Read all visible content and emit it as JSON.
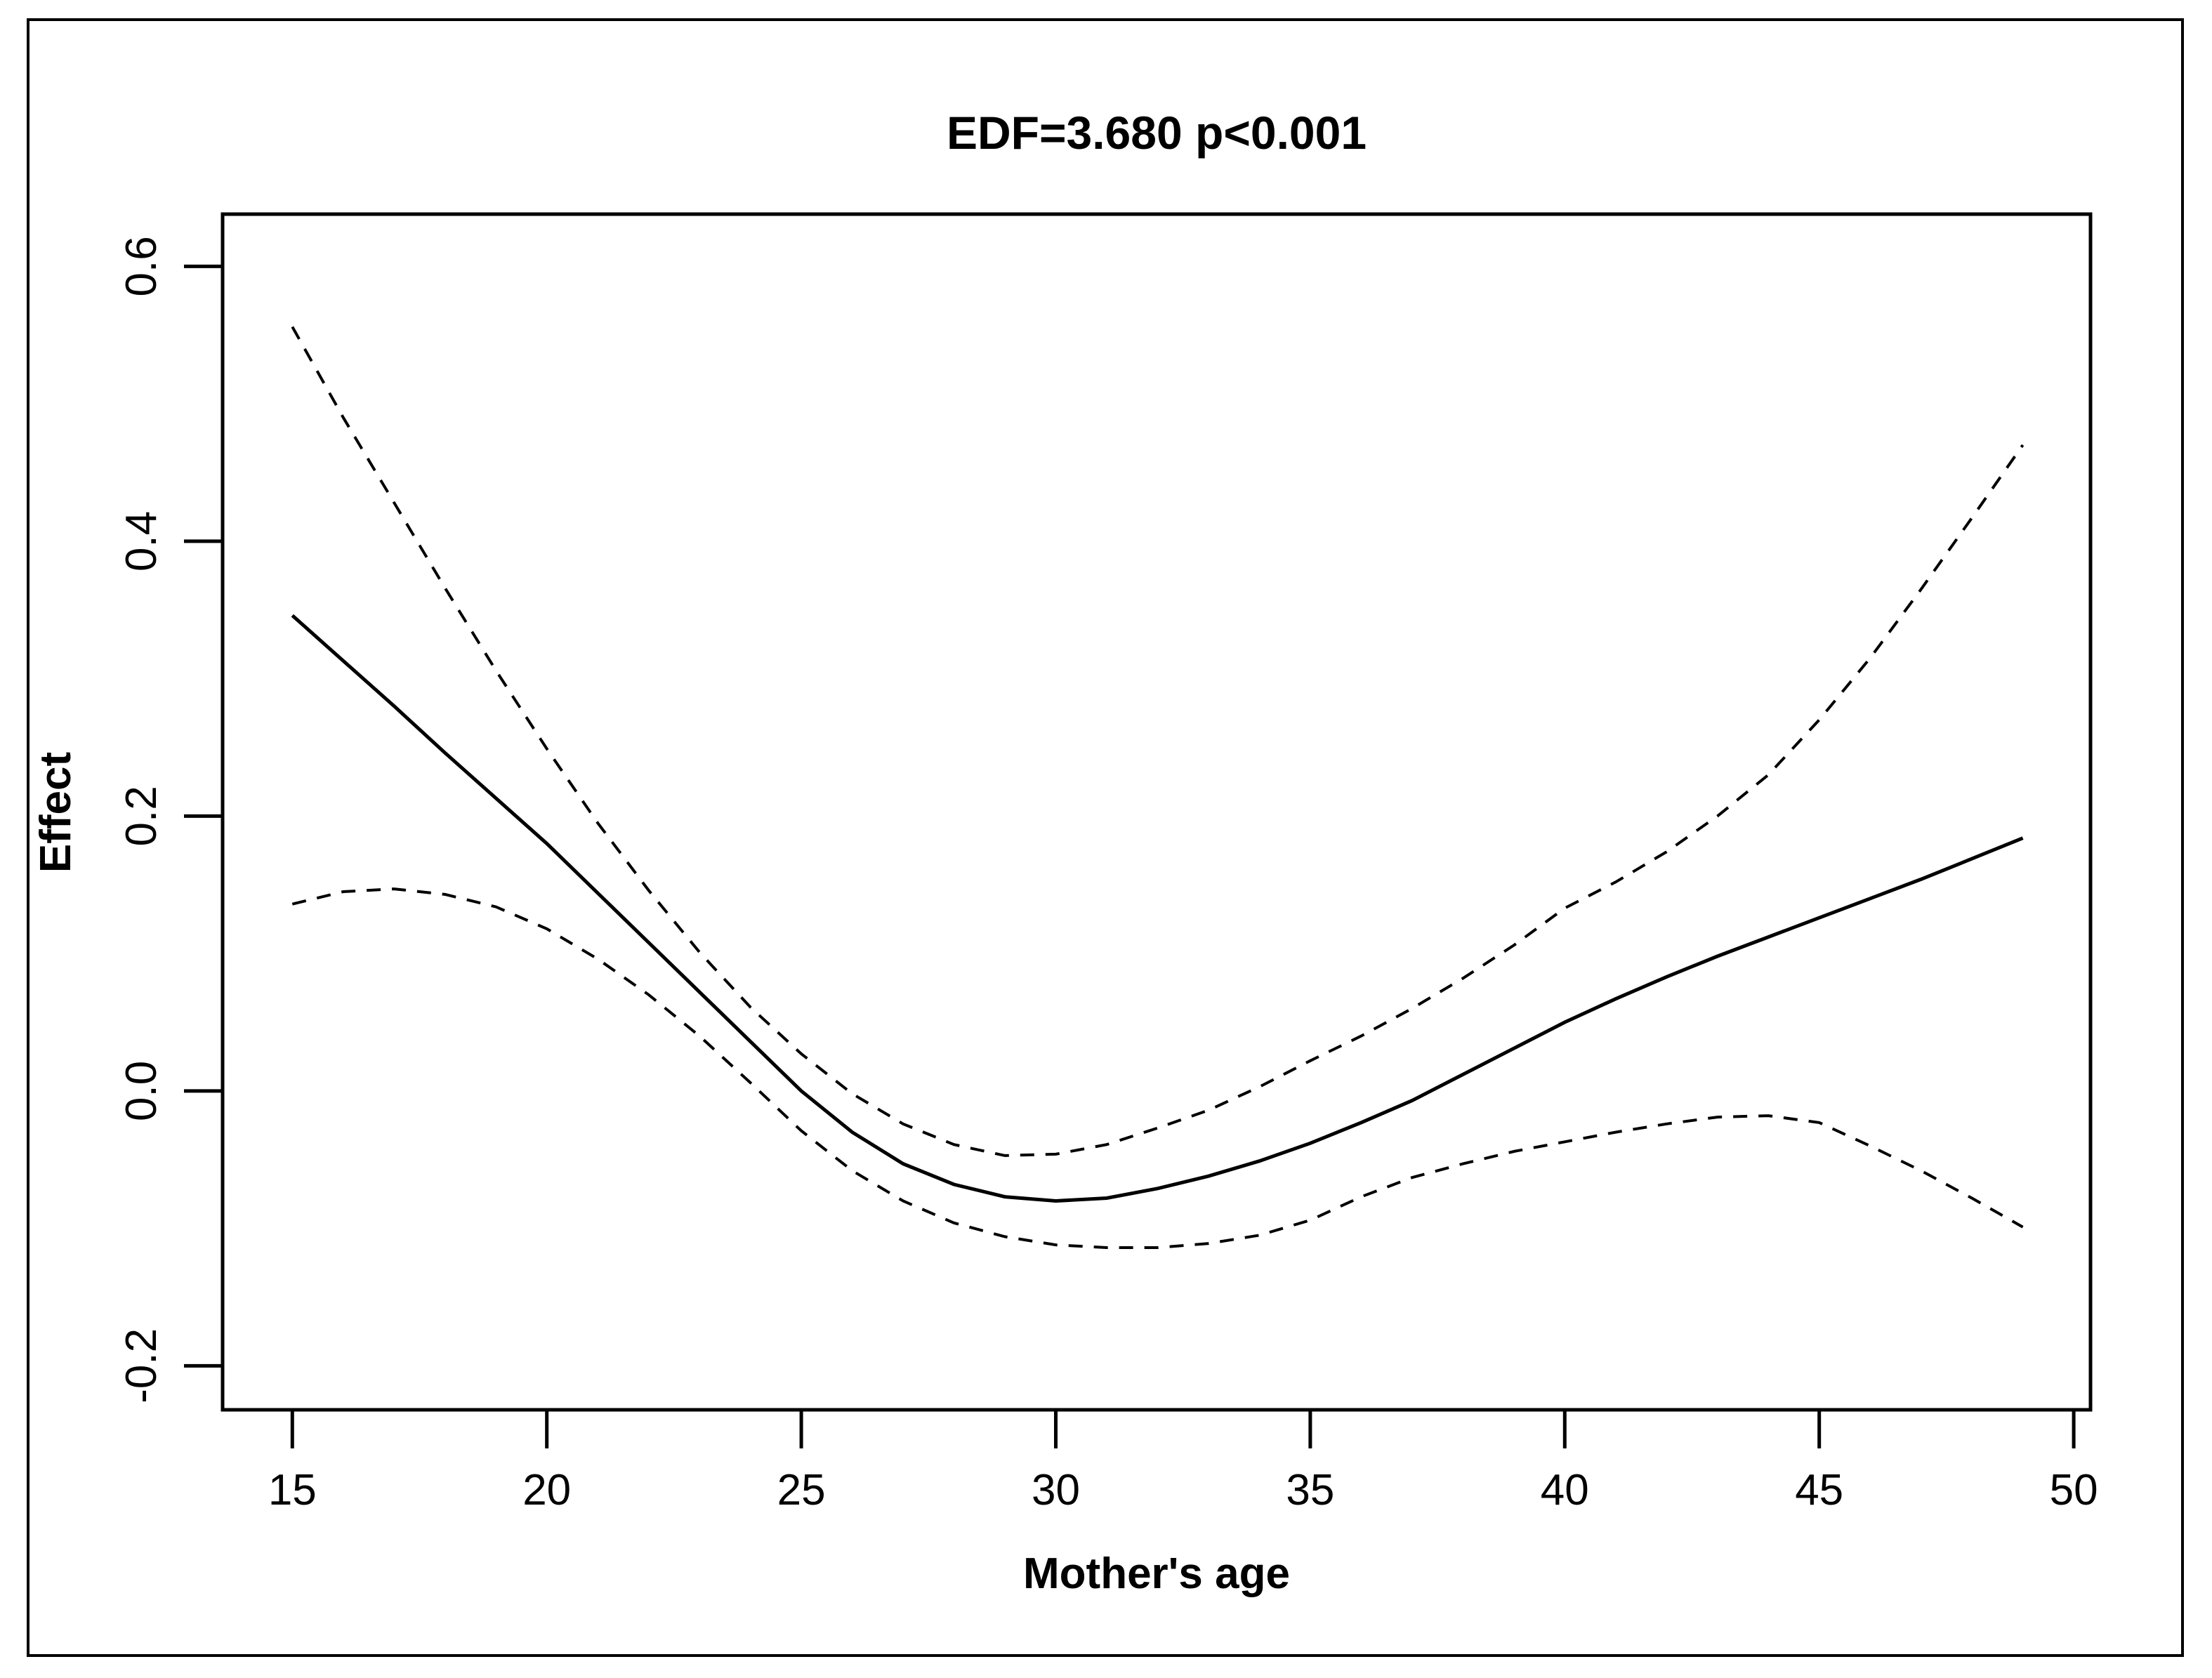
{
  "figure": {
    "title": "EDF=3.680  p<0.001",
    "xlabel": "Mother's age",
    "ylabel": "Effect",
    "background_color": "#ffffff",
    "line_color": "#000000",
    "border_color": "#000000"
  },
  "chart_data": {
    "type": "line",
    "title": "EDF=3.680  p<0.001",
    "xlabel": "Mother's age",
    "ylabel": "Effect",
    "xlim": [
      13.63,
      50.33
    ],
    "ylim": [
      -0.232,
      0.638
    ],
    "grid": false,
    "legend": "none",
    "xticks": {
      "values": [
        15,
        20,
        25,
        30,
        35,
        40,
        45,
        50
      ],
      "labels": [
        "15",
        "20",
        "25",
        "30",
        "35",
        "40",
        "45",
        "50"
      ]
    },
    "yticks": {
      "values": [
        0.6,
        0.4,
        0.2,
        0.0,
        -0.2
      ],
      "labels": [
        "0.6",
        "0.4",
        "0.2",
        "0.0",
        "-0.2"
      ]
    },
    "x": [
      15,
      16,
      17,
      18,
      19,
      20,
      21,
      22,
      23,
      24,
      25,
      26,
      27,
      28,
      29,
      30,
      31,
      32,
      33,
      34,
      35,
      36,
      37,
      38,
      39,
      40,
      41,
      42,
      43,
      44,
      45,
      46,
      47,
      48,
      49
    ],
    "series": [
      {
        "name": "smooth-fit",
        "style": "solid",
        "color": "#000000",
        "values": [
          0.346,
          0.313,
          0.28,
          0.246,
          0.213,
          0.18,
          0.144,
          0.108,
          0.072,
          0.036,
          0.0,
          -0.03,
          -0.053,
          -0.068,
          -0.077,
          -0.08,
          -0.078,
          -0.071,
          -0.062,
          -0.051,
          -0.038,
          -0.023,
          -0.007,
          0.012,
          0.031,
          0.05,
          0.067,
          0.083,
          0.098,
          0.112,
          0.126,
          0.14,
          0.154,
          0.169,
          0.184
        ]
      },
      {
        "name": "upper-confidence-band",
        "style": "dashed",
        "color": "#000000",
        "values": [
          0.556,
          0.49,
          0.428,
          0.366,
          0.306,
          0.249,
          0.195,
          0.146,
          0.101,
          0.061,
          0.027,
          -0.002,
          -0.024,
          -0.039,
          -0.047,
          -0.046,
          -0.039,
          -0.027,
          -0.014,
          0.003,
          0.022,
          0.04,
          0.06,
          0.082,
          0.106,
          0.133,
          0.152,
          0.174,
          0.2,
          0.23,
          0.27,
          0.315,
          0.365,
          0.417,
          0.47
        ]
      },
      {
        "name": "lower-confidence-band",
        "style": "dashed",
        "color": "#000000",
        "values": [
          0.136,
          0.145,
          0.147,
          0.143,
          0.134,
          0.118,
          0.096,
          0.07,
          0.04,
          0.006,
          -0.029,
          -0.058,
          -0.08,
          -0.096,
          -0.106,
          -0.112,
          -0.114,
          -0.114,
          -0.111,
          -0.105,
          -0.094,
          -0.077,
          -0.063,
          -0.053,
          -0.044,
          -0.037,
          -0.03,
          -0.024,
          -0.019,
          -0.018,
          -0.023,
          -0.04,
          -0.058,
          -0.078,
          -0.099
        ]
      }
    ]
  }
}
